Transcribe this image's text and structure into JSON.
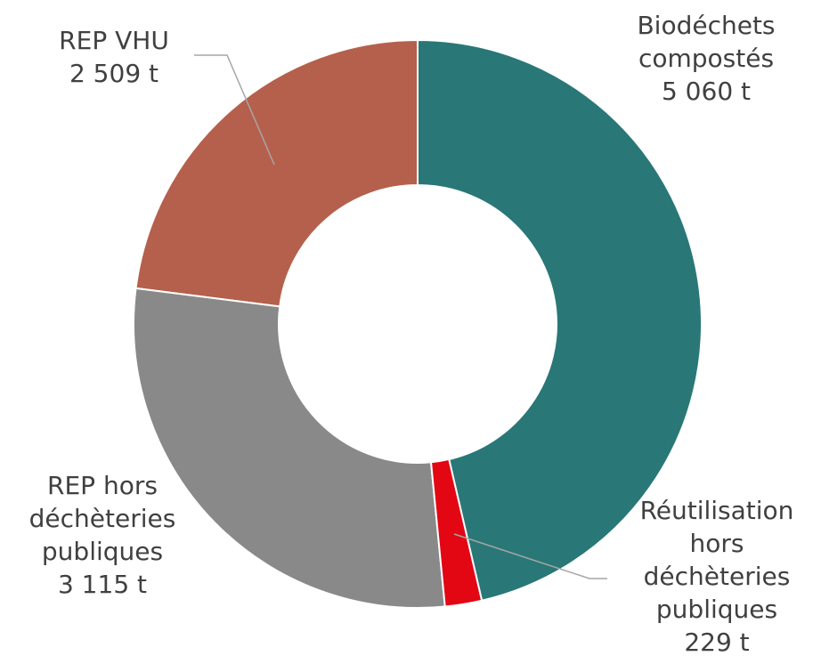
{
  "chart_data": {
    "type": "donut",
    "categories": [
      "Biodéchets compostés",
      "Réutilisation hors déchèteries publiques",
      "REP hors déchèteries publiques",
      "REP VHU"
    ],
    "values": [
      5060,
      229,
      3115,
      2509
    ],
    "value_labels": [
      "5 060 t",
      "229 t",
      "3 115 t",
      "2 509 t"
    ],
    "colors": [
      "#2a7777",
      "#e30613",
      "#898989",
      "#b5604c"
    ]
  }
}
